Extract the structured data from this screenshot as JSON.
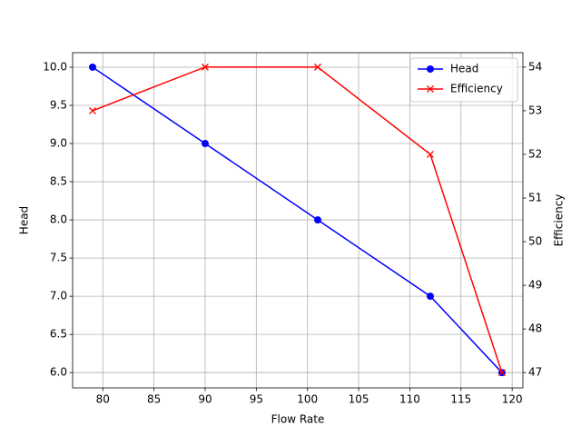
{
  "chart_data": {
    "type": "line",
    "xlabel": "Flow Rate",
    "ylabel": "Head",
    "y2label": "Efficiency",
    "x": [
      79,
      90,
      101,
      112,
      119
    ],
    "series": [
      {
        "name": "Head",
        "color": "#0000ff",
        "marker": "o",
        "values": [
          10,
          9,
          8,
          7,
          6
        ]
      },
      {
        "name": "Efficiency",
        "color": "#ff0000",
        "marker": "x",
        "axis": "y2",
        "values": [
          53,
          54,
          54,
          52,
          47
        ]
      }
    ],
    "xlim": [
      77.05,
      121.05
    ],
    "xticks": [
      80,
      85,
      90,
      95,
      100,
      105,
      110,
      115,
      120
    ],
    "ylim": [
      5.8,
      10.19
    ],
    "yticks": [
      {
        "value": 6,
        "label": "6.0"
      },
      6.5,
      {
        "value": 7,
        "label": "7.0"
      },
      7.5,
      {
        "value": 8,
        "label": "8.0"
      },
      8.5,
      {
        "value": 9,
        "label": "9.0"
      },
      9.5,
      {
        "value": 10,
        "label": "10.0"
      }
    ],
    "y2lim": [
      46.65,
      54.33
    ],
    "y2ticks": [
      47,
      48,
      49,
      50,
      51,
      52,
      53,
      54
    ],
    "grid": true,
    "legend": "upper right"
  }
}
